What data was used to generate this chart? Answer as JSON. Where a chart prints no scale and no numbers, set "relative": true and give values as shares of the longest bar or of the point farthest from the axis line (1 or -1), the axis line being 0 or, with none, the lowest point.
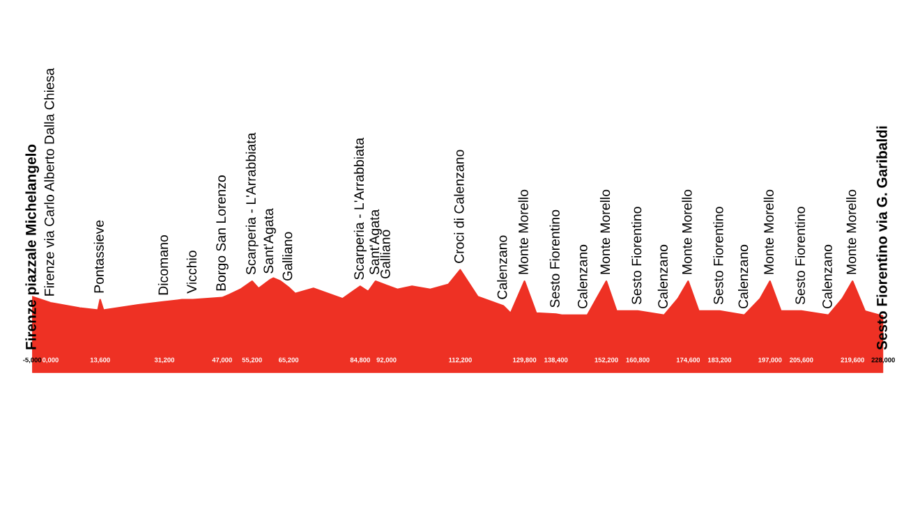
{
  "chart_data": {
    "type": "area",
    "relative": true,
    "color": "#ee3124",
    "x": [
      -5000,
      0,
      8000,
      13000,
      13600,
      14500,
      24000,
      31200,
      36000,
      39000,
      47000,
      49000,
      52000,
      55200,
      57000,
      60000,
      61000,
      63000,
      65200,
      67000,
      72000,
      80000,
      84800,
      87000,
      89000,
      92000,
      95000,
      99000,
      104000,
      109000,
      112200,
      117000,
      124000,
      126000,
      129800,
      133000,
      138400,
      140000,
      146000,
      147000,
      149500,
      152200,
      155000,
      160800,
      168000,
      171800,
      174600,
      177500,
      183200,
      190000,
      194300,
      197000,
      200000,
      205600,
      213000,
      216800,
      219600,
      223000,
      228000
    ],
    "values": [
      0.74,
      0.68,
      0.63,
      0.61,
      0.71,
      0.61,
      0.66,
      0.69,
      0.71,
      0.71,
      0.73,
      0.76,
      0.81,
      0.89,
      0.82,
      0.9,
      0.92,
      0.89,
      0.83,
      0.77,
      0.82,
      0.72,
      0.84,
      0.79,
      0.89,
      0.85,
      0.81,
      0.84,
      0.81,
      0.86,
      1.0,
      0.74,
      0.65,
      0.58,
      0.89,
      0.58,
      0.57,
      0.56,
      0.56,
      0.56,
      0.72,
      0.89,
      0.6,
      0.6,
      0.56,
      0.72,
      0.89,
      0.6,
      0.6,
      0.56,
      0.72,
      0.89,
      0.6,
      0.6,
      0.56,
      0.72,
      0.89,
      0.6,
      0.55
    ],
    "xlim": [
      -5000,
      228000
    ],
    "xticks": [
      {
        "value": -5000,
        "label": "-5,000"
      },
      {
        "value": 0,
        "label": "0,000"
      },
      {
        "value": 13600,
        "label": "13,600"
      },
      {
        "value": 31200,
        "label": "31,200"
      },
      {
        "value": 47000,
        "label": "47,000"
      },
      {
        "value": 55200,
        "label": "55,200"
      },
      {
        "value": 65200,
        "label": "65,200"
      },
      {
        "value": 84800,
        "label": "84,800"
      },
      {
        "value": 92000,
        "label": "92,000"
      },
      {
        "value": 112200,
        "label": "112,200"
      },
      {
        "value": 129800,
        "label": "129,800"
      },
      {
        "value": 138400,
        "label": "138,400"
      },
      {
        "value": 152200,
        "label": "152,200"
      },
      {
        "value": 160800,
        "label": "160,800"
      },
      {
        "value": 174600,
        "label": "174,600"
      },
      {
        "value": 183200,
        "label": "183,200"
      },
      {
        "value": 197000,
        "label": "197,000"
      },
      {
        "value": 205600,
        "label": "205,600"
      },
      {
        "value": 219600,
        "label": "219,600"
      },
      {
        "value": 228000,
        "label": "228,000"
      }
    ],
    "annotations": [
      {
        "text": "Firenze piazzale Michelangelo",
        "x": -5000,
        "y": 0.74
      },
      {
        "text": "Firenze via Carlo Alberto Dalla Chiesa",
        "x": 0,
        "y": 0.68
      },
      {
        "text": "Pontassieve",
        "x": 13600,
        "y": 0.71
      },
      {
        "text": "Dicomano",
        "x": 31200,
        "y": 0.69
      },
      {
        "text": "Vicchio",
        "x": 39000,
        "y": 0.71
      },
      {
        "text": "Borgo San Lorenzo",
        "x": 47000,
        "y": 0.73
      },
      {
        "text": "Scarperia - L'Arrabbiata",
        "x": 55200,
        "y": 0.89
      },
      {
        "text": "Sant'Agata",
        "x": 60000,
        "y": 0.9
      },
      {
        "text": "Galliano",
        "x": 65200,
        "y": 0.83
      },
      {
        "text": "Scarperia - L'Arrabbiata",
        "x": 84800,
        "y": 0.84
      },
      {
        "text": "Sant'Agata",
        "x": 89000,
        "y": 0.89
      },
      {
        "text": "Galliano",
        "x": 92000,
        "y": 0.85
      },
      {
        "text": "Croci di Calenzano",
        "x": 112200,
        "y": 1.0
      },
      {
        "text": "Calenzano",
        "x": 124000,
        "y": 0.65
      },
      {
        "text": "Monte Morello",
        "x": 129800,
        "y": 0.89
      },
      {
        "text": "Sesto Fiorentino",
        "x": 138400,
        "y": 0.57
      },
      {
        "text": "Calenzano",
        "x": 146000,
        "y": 0.56
      },
      {
        "text": "Monte Morello",
        "x": 152200,
        "y": 0.89
      },
      {
        "text": "Sesto Fiorentino",
        "x": 160800,
        "y": 0.6
      },
      {
        "text": "Calenzano",
        "x": 168000,
        "y": 0.56
      },
      {
        "text": "Monte Morello",
        "x": 174600,
        "y": 0.89
      },
      {
        "text": "Sesto Fiorentino",
        "x": 183200,
        "y": 0.6
      },
      {
        "text": "Calenzano",
        "x": 190000,
        "y": 0.56
      },
      {
        "text": "Monte Morello",
        "x": 197000,
        "y": 0.89
      },
      {
        "text": "Sesto Fiorentino",
        "x": 205600,
        "y": 0.6
      },
      {
        "text": "Calenzano",
        "x": 213000,
        "y": 0.56
      },
      {
        "text": "Monte Morello",
        "x": 219600,
        "y": 0.89
      },
      {
        "text": "Sesto Fiorentino via G. Garibaldi",
        "x": 228000,
        "y": 0.55
      }
    ]
  }
}
